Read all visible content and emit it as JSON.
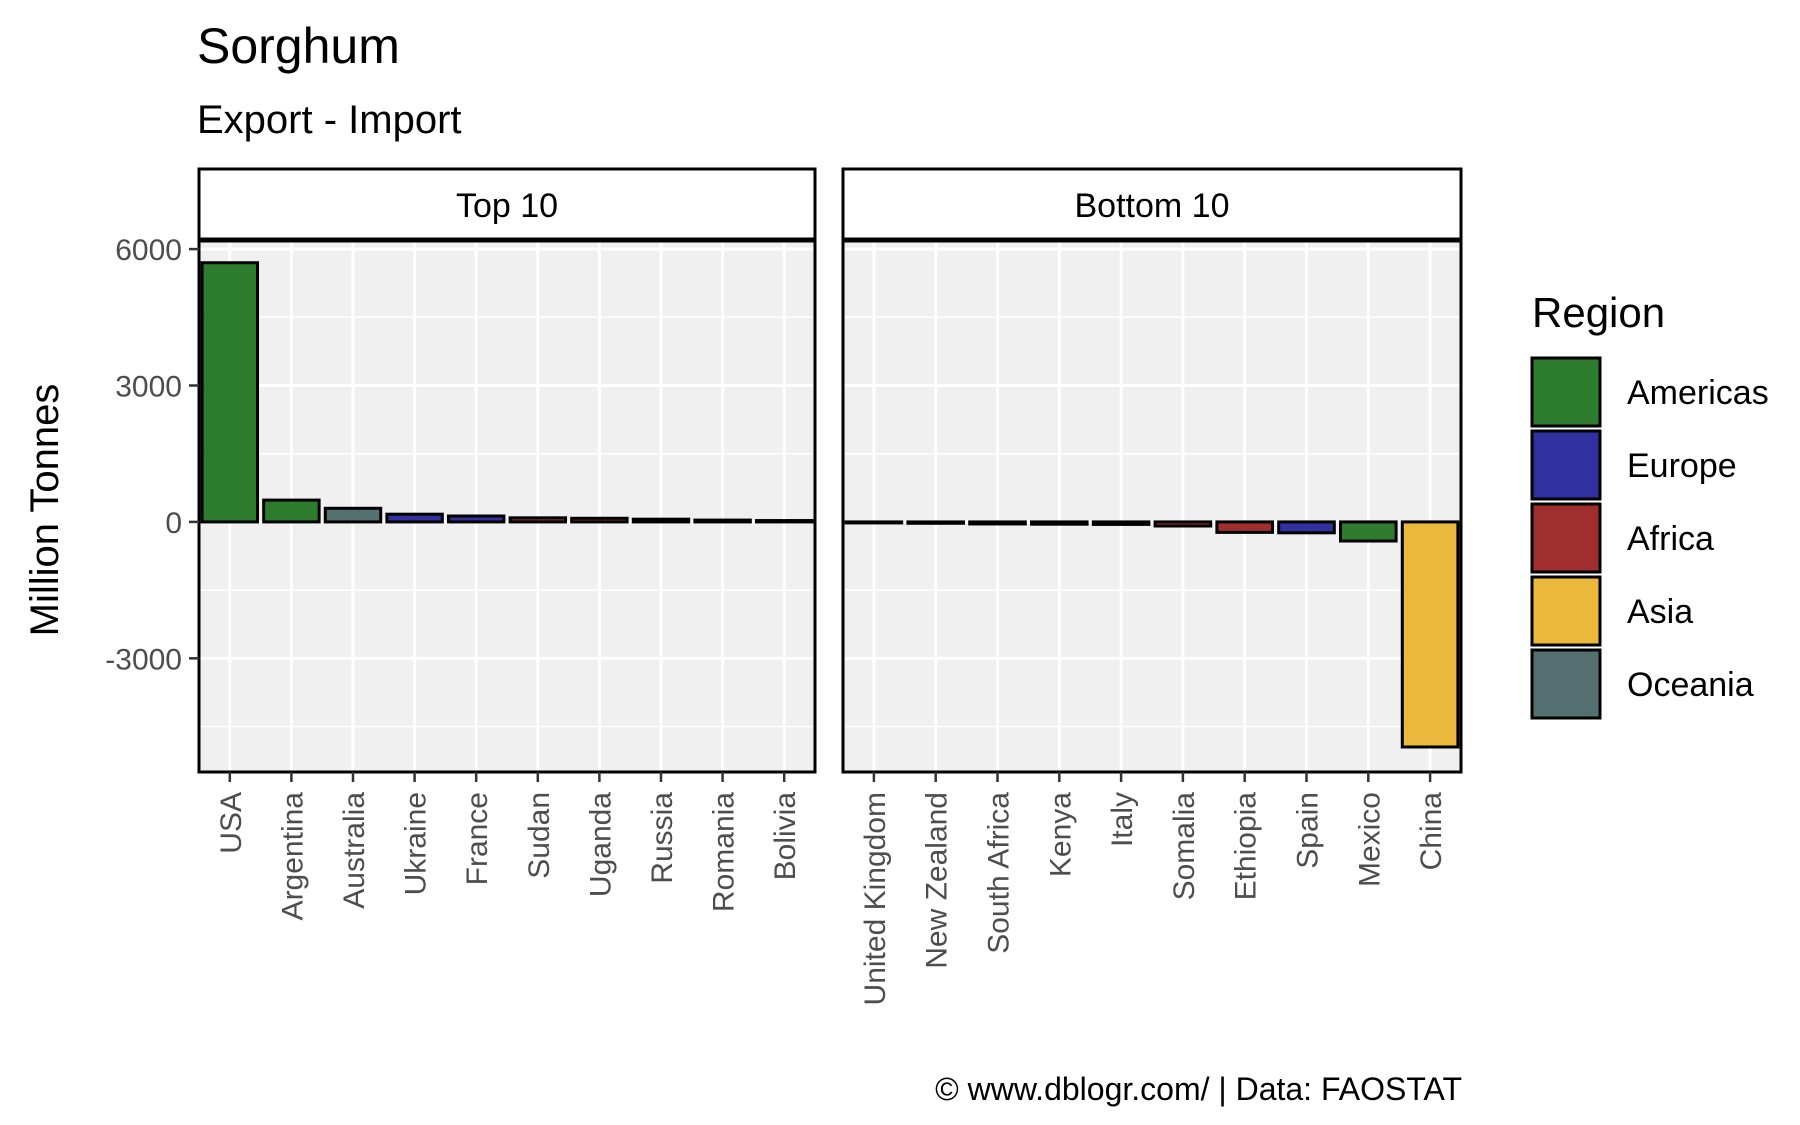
{
  "chart_data": {
    "type": "bar",
    "title": "Sorghum",
    "subtitle": "Export - Import",
    "ylabel": "Million Tonnes",
    "xlabel": "",
    "ylim": [
      -5500,
      6200
    ],
    "yticks": [
      6000,
      3000,
      0,
      -3000
    ],
    "ytick_labels": [
      "6000",
      "3000",
      "0",
      "-3000"
    ],
    "grid": true,
    "legend": {
      "title": "Region",
      "position": "right",
      "entries": [
        {
          "name": "Americas",
          "color": "#2e7d2e"
        },
        {
          "name": "Europe",
          "color": "#3030a0"
        },
        {
          "name": "Africa",
          "color": "#a02e2e"
        },
        {
          "name": "Asia",
          "color": "#eab83a"
        },
        {
          "name": "Oceania",
          "color": "#547070"
        }
      ]
    },
    "panels": [
      {
        "name": "Top 10",
        "categories": [
          "USA",
          "Argentina",
          "Australia",
          "Ukraine",
          "France",
          "Sudan",
          "Uganda",
          "Russia",
          "Romania",
          "Bolivia"
        ],
        "values": [
          5700,
          480,
          300,
          170,
          130,
          90,
          80,
          60,
          40,
          30
        ],
        "regions": [
          "Americas",
          "Americas",
          "Oceania",
          "Europe",
          "Europe",
          "Africa",
          "Africa",
          "Europe",
          "Europe",
          "Americas"
        ]
      },
      {
        "name": "Bottom 10",
        "categories": [
          "United Kingdom",
          "New Zealand",
          "South Africa",
          "Kenya",
          "Italy",
          "Somalia",
          "Ethiopia",
          "Spain",
          "Mexico",
          "China"
        ],
        "values": [
          -20,
          -30,
          -45,
          -50,
          -55,
          -90,
          -230,
          -240,
          -420,
          -4950
        ],
        "regions": [
          "Europe",
          "Oceania",
          "Africa",
          "Africa",
          "Europe",
          "Africa",
          "Africa",
          "Europe",
          "Americas",
          "Asia"
        ]
      }
    ]
  },
  "caption": "© www.dblogr.com/  |  Data: FAOSTAT"
}
